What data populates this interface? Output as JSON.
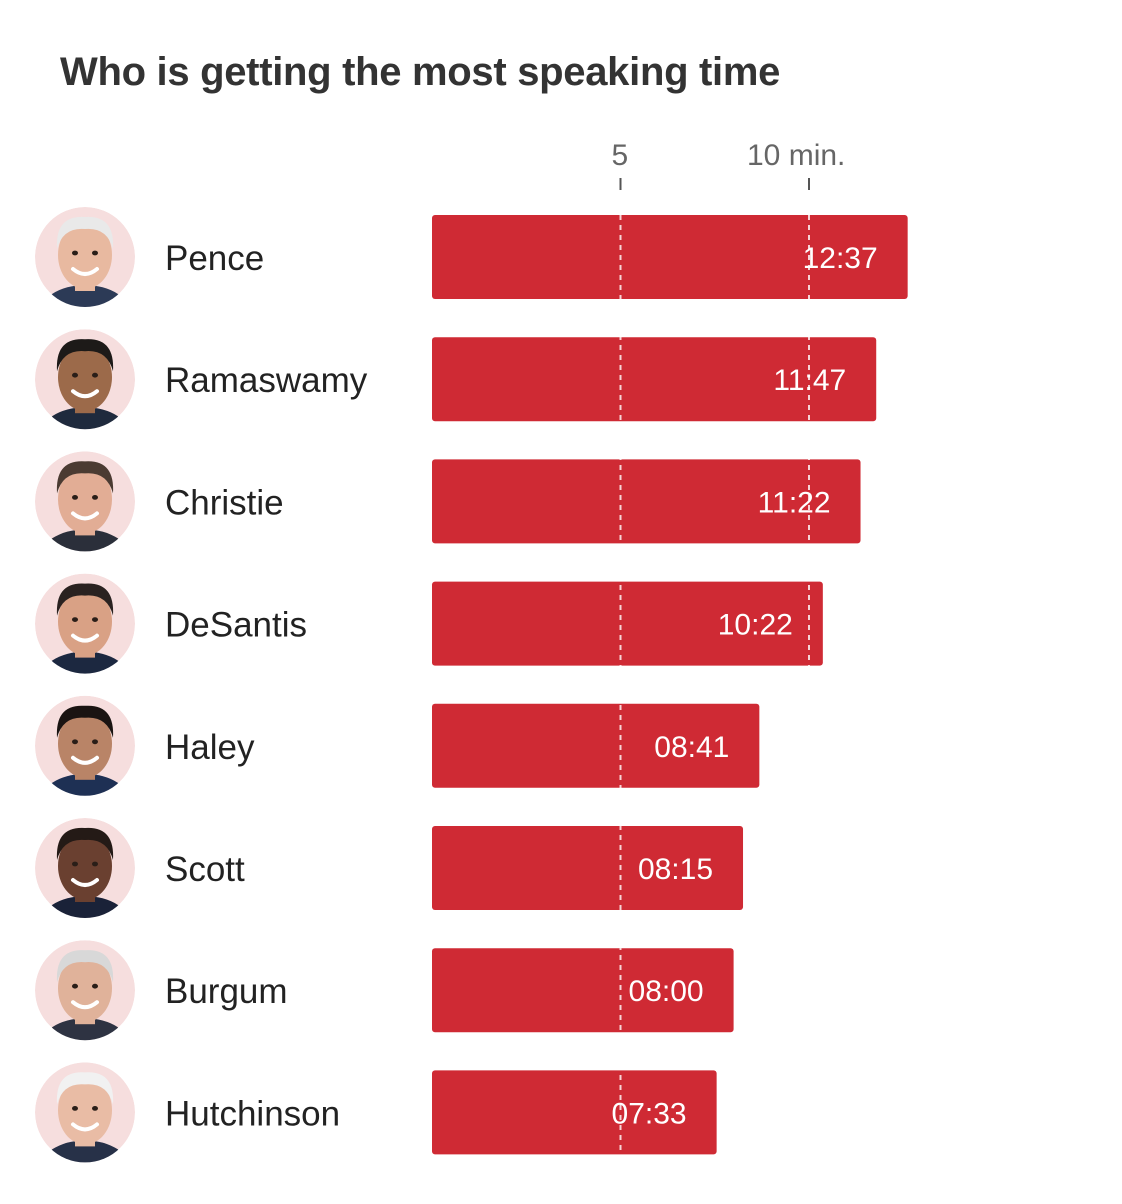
{
  "chart_data": {
    "type": "bar",
    "orientation": "horizontal",
    "title": "Who is getting the most speaking time",
    "unit": "min.",
    "ticks": [
      {
        "value": 5,
        "label": "5"
      },
      {
        "value": 10,
        "label": "10 min."
      }
    ],
    "xlim": [
      0,
      12.62
    ],
    "gridlines": true,
    "bar_color": "#cf2a34",
    "categories": [
      "Pence",
      "Ramaswamy",
      "Christie",
      "DeSantis",
      "Haley",
      "Scott",
      "Burgum",
      "Hutchinson"
    ],
    "values_minutes": [
      12.617,
      11.783,
      11.367,
      10.367,
      8.683,
      8.25,
      8.0,
      7.55
    ],
    "value_labels": [
      "12:37",
      "11:47",
      "11:22",
      "10:22",
      "08:41",
      "08:15",
      "08:00",
      "07:33"
    ],
    "avatar_icons": [
      "pence-avatar-icon",
      "ramaswamy-avatar-icon",
      "christie-avatar-icon",
      "desantis-avatar-icon",
      "haley-avatar-icon",
      "scott-avatar-icon",
      "burgum-avatar-icon",
      "hutchinson-avatar-icon"
    ],
    "avatar_colors": [
      {
        "skin": "#e8b9a0",
        "hair": "#e9e9e9",
        "shirt": "#2c3a56"
      },
      {
        "skin": "#9c6a4a",
        "hair": "#1d1a18",
        "shirt": "#1f2a3d"
      },
      {
        "skin": "#e2ad95",
        "hair": "#4b3b32",
        "shirt": "#2b2f3a"
      },
      {
        "skin": "#d9a185",
        "hair": "#2a2220",
        "shirt": "#1c2840"
      },
      {
        "skin": "#b98467",
        "hair": "#1a1412",
        "shirt": "#1e3054"
      },
      {
        "skin": "#6a4030",
        "hair": "#241a16",
        "shirt": "#1a2238"
      },
      {
        "skin": "#e0b29a",
        "hair": "#d8d8d8",
        "shirt": "#2e3342"
      },
      {
        "skin": "#e9bca5",
        "hair": "#f1f1f1",
        "shirt": "#273148"
      }
    ]
  }
}
